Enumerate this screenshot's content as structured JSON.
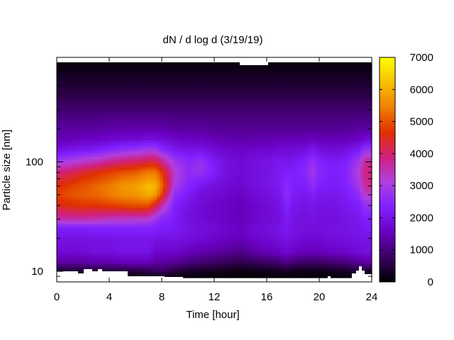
{
  "chart_data": {
    "type": "heatmap",
    "title": "dN / d log d (3/19/19)",
    "xlabel": "Time [hour]",
    "ylabel": "Particle size [nm]",
    "x_ticks": [
      0,
      4,
      8,
      12,
      16,
      20,
      24
    ],
    "x_tick_labels": [
      "0",
      "4",
      "8",
      "12",
      "16",
      "20",
      "24"
    ],
    "xlim": [
      0,
      24
    ],
    "y_scale": "log",
    "y_ticks": [
      10,
      100
    ],
    "y_tick_labels": [
      "10",
      "100"
    ],
    "ylim": [
      8,
      900
    ],
    "colorbar": {
      "range": [
        0,
        7000
      ],
      "ticks": [
        0,
        1000,
        2000,
        3000,
        4000,
        5000,
        6000,
        7000
      ],
      "tick_labels": [
        "0",
        "1000",
        "2000",
        "3000",
        "4000",
        "5000",
        "6000",
        "7000"
      ],
      "colormap": [
        "#000000",
        "#3a0060",
        "#6a00c0",
        "#7f20ff",
        "#b040e0",
        "#d02080",
        "#e03000",
        "#f08000",
        "#f8c000",
        "#ffff00"
      ]
    },
    "size_bins_nm": [
      8.5,
      10,
      12,
      15,
      20,
      25,
      30,
      40,
      50,
      60,
      80,
      100,
      130,
      160,
      200,
      300,
      400,
      600,
      800
    ],
    "hours": [
      0,
      1,
      2,
      3,
      4,
      5,
      6,
      7,
      7.5,
      8,
      9,
      10,
      11,
      12,
      13,
      14,
      15,
      16,
      17,
      17.5,
      18,
      19,
      19.5,
      20,
      21,
      22,
      23,
      23.5,
      24
    ],
    "values": [
      [
        0,
        0,
        0,
        0,
        0,
        0,
        0,
        0,
        0,
        0,
        0,
        0,
        0,
        0,
        0,
        0,
        0,
        0,
        0,
        0,
        0,
        0,
        0,
        0,
        0,
        0,
        0,
        0,
        0
      ],
      [
        400,
        400,
        380,
        380,
        400,
        450,
        500,
        600,
        700,
        800,
        500,
        350,
        300,
        250,
        200,
        150,
        180,
        200,
        250,
        300,
        250,
        200,
        200,
        200,
        250,
        300,
        400,
        450,
        450
      ],
      [
        1300,
        1300,
        1300,
        1400,
        1400,
        1500,
        1500,
        1500,
        1300,
        1300,
        1200,
        1000,
        900,
        800,
        700,
        600,
        700,
        800,
        900,
        1100,
        900,
        800,
        800,
        800,
        900,
        1000,
        1200,
        1300,
        1300
      ],
      [
        1800,
        1800,
        1800,
        1900,
        1900,
        2000,
        2000,
        2000,
        1700,
        1700,
        1700,
        1500,
        1400,
        1300,
        1200,
        1100,
        1300,
        1500,
        1600,
        1800,
        1600,
        1500,
        1500,
        1500,
        1600,
        1700,
        1800,
        1900,
        1900
      ],
      [
        2000,
        2000,
        2000,
        2000,
        2000,
        2100,
        2100,
        2100,
        2000,
        2000,
        2000,
        1900,
        1800,
        1700,
        1600,
        1500,
        1700,
        1800,
        1900,
        2000,
        1900,
        1800,
        1800,
        1800,
        1900,
        1900,
        2000,
        2000,
        2000
      ],
      [
        2300,
        2300,
        2300,
        2400,
        2400,
        2400,
        2400,
        2400,
        2300,
        2300,
        2200,
        2000,
        1900,
        1800,
        1700,
        1600,
        1800,
        1900,
        2000,
        2200,
        2000,
        1900,
        1900,
        1900,
        2000,
        2000,
        2100,
        2200,
        2200
      ],
      [
        3500,
        3600,
        3600,
        3500,
        3400,
        3300,
        3300,
        3200,
        2800,
        2500,
        2200,
        1900,
        1800,
        1700,
        1600,
        1500,
        1700,
        1800,
        1900,
        2200,
        2000,
        1900,
        2000,
        1900,
        1900,
        2000,
        2100,
        2300,
        2300
      ],
      [
        4500,
        4600,
        4700,
        4700,
        4800,
        4900,
        5000,
        5000,
        4300,
        3600,
        2300,
        2000,
        1800,
        1700,
        1600,
        1500,
        1700,
        1800,
        2000,
        2400,
        2100,
        2000,
        2100,
        2000,
        2000,
        2100,
        2300,
        2700,
        2700
      ],
      [
        4800,
        5000,
        5100,
        5200,
        5400,
        5600,
        5700,
        6000,
        5800,
        4800,
        2600,
        2200,
        1900,
        1800,
        1700,
        1600,
        1800,
        1900,
        2100,
        2600,
        2200,
        2100,
        2300,
        2100,
        2100,
        2200,
        2600,
        3300,
        3300
      ],
      [
        4600,
        4800,
        5000,
        5200,
        5400,
        5700,
        5800,
        6200,
        6100,
        5300,
        3000,
        2400,
        2100,
        1900,
        1800,
        1700,
        1900,
        2000,
        2200,
        2500,
        2300,
        2300,
        2600,
        2300,
        2200,
        2300,
        2900,
        3700,
        3700
      ],
      [
        3900,
        4100,
        4400,
        4600,
        4800,
        5000,
        5100,
        5400,
        5400,
        4800,
        3200,
        2600,
        2700,
        2300,
        1900,
        1800,
        1900,
        2000,
        2200,
        2300,
        2300,
        2500,
        2900,
        2500,
        2300,
        2400,
        3100,
        3900,
        3900
      ],
      [
        2900,
        3100,
        3300,
        3500,
        3800,
        4000,
        4100,
        4300,
        4300,
        3800,
        2900,
        2500,
        2700,
        2200,
        1900,
        1800,
        1900,
        2000,
        2100,
        2100,
        2100,
        2400,
        2700,
        2400,
        2200,
        2300,
        2900,
        3700,
        3700
      ],
      [
        1900,
        2000,
        2100,
        2200,
        2400,
        2600,
        2700,
        2900,
        2900,
        2500,
        2100,
        2000,
        2000,
        1800,
        1700,
        1600,
        1700,
        1700,
        1800,
        1800,
        1800,
        1900,
        2100,
        1900,
        1800,
        1900,
        2200,
        2700,
        2700
      ],
      [
        1500,
        1500,
        1600,
        1600,
        1700,
        1800,
        1800,
        1900,
        1900,
        1800,
        1700,
        1600,
        1600,
        1500,
        1400,
        1400,
        1400,
        1400,
        1500,
        1500,
        1500,
        1500,
        1600,
        1500,
        1500,
        1500,
        1600,
        1800,
        1800
      ],
      [
        1300,
        1300,
        1300,
        1300,
        1400,
        1400,
        1400,
        1400,
        1400,
        1400,
        1300,
        1300,
        1300,
        1200,
        1200,
        1200,
        1200,
        1200,
        1200,
        1200,
        1200,
        1200,
        1200,
        1200,
        1200,
        1200,
        1300,
        1300,
        1300
      ],
      [
        900,
        900,
        900,
        900,
        900,
        900,
        900,
        900,
        900,
        900,
        900,
        900,
        900,
        900,
        900,
        900,
        900,
        900,
        900,
        900,
        900,
        900,
        900,
        900,
        900,
        900,
        900,
        900,
        900
      ],
      [
        600,
        600,
        600,
        600,
        600,
        600,
        600,
        600,
        600,
        600,
        600,
        600,
        600,
        600,
        600,
        600,
        600,
        600,
        600,
        600,
        600,
        600,
        600,
        600,
        600,
        600,
        600,
        600,
        600
      ],
      [
        300,
        300,
        300,
        300,
        300,
        300,
        300,
        300,
        300,
        300,
        300,
        300,
        300,
        300,
        300,
        300,
        300,
        300,
        300,
        300,
        300,
        300,
        300,
        300,
        300,
        300,
        300,
        300,
        300
      ],
      [
        80,
        80,
        80,
        80,
        80,
        80,
        80,
        80,
        80,
        80,
        80,
        80,
        80,
        80,
        80,
        80,
        80,
        80,
        80,
        80,
        80,
        80,
        80,
        80,
        80,
        80,
        80,
        80,
        80
      ]
    ]
  }
}
